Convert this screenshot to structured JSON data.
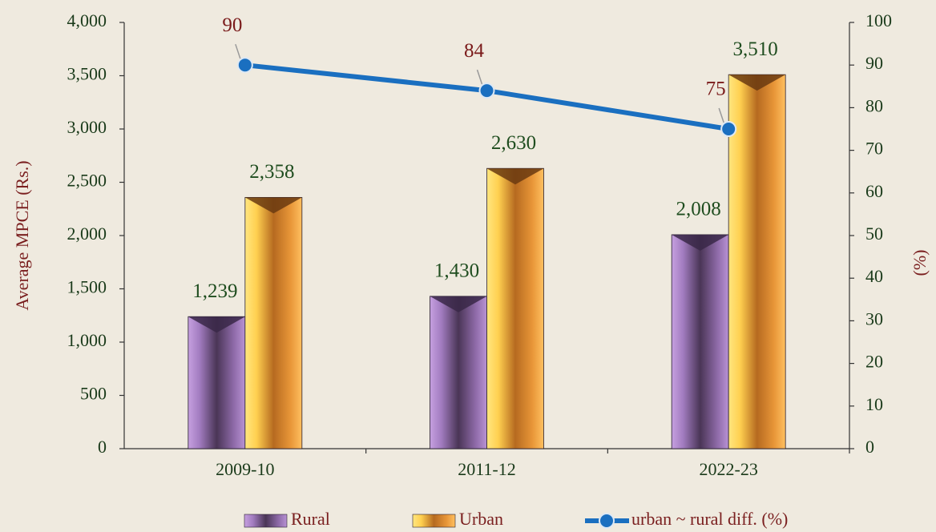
{
  "chart_data": {
    "type": "bar",
    "categories": [
      "2009-10",
      "2011-12",
      "2022-23"
    ],
    "series": [
      {
        "name": "Rural",
        "color": "#8e6aa8",
        "values": [
          1239,
          1430,
          2008
        ],
        "value_labels": [
          "1,239",
          "1,430",
          "2,008"
        ]
      },
      {
        "name": "Urban",
        "color": "#f0a030",
        "values": [
          2358,
          2630,
          3510
        ],
        "value_labels": [
          "2,358",
          "2,630",
          "3,510"
        ]
      },
      {
        "name": "urban ~ rural diff. (%)",
        "type": "line",
        "axis": "y2",
        "color": "#1a6fc0",
        "values": [
          90,
          84,
          75
        ]
      }
    ],
    "ylabel": "Average MPCE (Rs.)",
    "y2label": "(%)",
    "ylim": [
      0,
      4000
    ],
    "yticks": [
      0,
      500,
      {
        "value": 1000,
        "label": "1,000"
      },
      {
        "value": 1500,
        "label": "1,500"
      },
      {
        "value": 2000,
        "label": "2,000"
      },
      {
        "value": 2500,
        "label": "2,500"
      },
      {
        "value": 3000,
        "label": "3,000"
      },
      {
        "value": 3500,
        "label": "3,500"
      },
      {
        "value": 4000,
        "label": "4,000"
      }
    ],
    "y2lim": [
      0,
      100
    ],
    "y2ticks": [
      0,
      10,
      20,
      30,
      40,
      50,
      60,
      70,
      80,
      90,
      100
    ],
    "legend": "bottom"
  }
}
